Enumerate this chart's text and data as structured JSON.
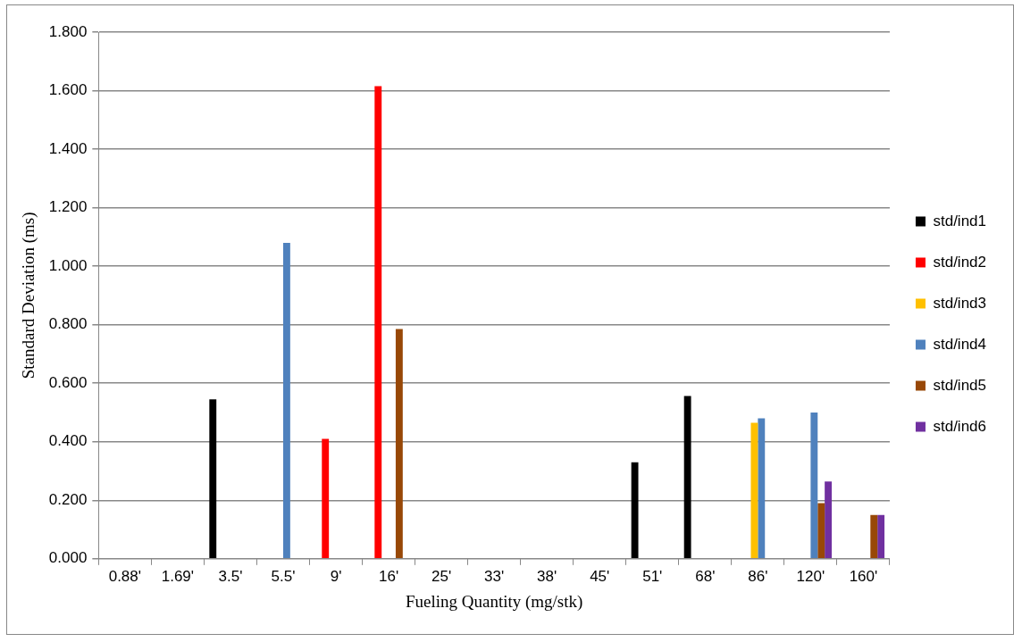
{
  "chart_data": {
    "type": "bar",
    "xlabel": "Fueling Quantity (mg/stk)",
    "ylabel": "Standard Deviation (ms)",
    "categories": [
      "0.88'",
      "1.69'",
      "3.5'",
      "5.5'",
      "9'",
      "16'",
      "25'",
      "33'",
      "38'",
      "45'",
      "51'",
      "68'",
      "86'",
      "120'",
      "160'"
    ],
    "series": [
      {
        "name": "std/ind1",
        "color": "#000000",
        "values": [
          null,
          null,
          0.545,
          null,
          null,
          null,
          null,
          null,
          null,
          null,
          0.33,
          0.556,
          null,
          null,
          null
        ]
      },
      {
        "name": "std/ind2",
        "color": "#ff0000",
        "values": [
          null,
          null,
          null,
          null,
          0.41,
          1.615,
          null,
          null,
          null,
          null,
          null,
          null,
          null,
          null,
          null
        ]
      },
      {
        "name": "std/ind3",
        "color": "#ffc000",
        "values": [
          null,
          null,
          null,
          null,
          null,
          null,
          null,
          null,
          null,
          null,
          null,
          null,
          0.465,
          null,
          null
        ]
      },
      {
        "name": "std/ind4",
        "color": "#4f81bd",
        "values": [
          null,
          null,
          null,
          1.08,
          null,
          null,
          null,
          null,
          null,
          null,
          null,
          null,
          0.48,
          0.5,
          null
        ]
      },
      {
        "name": "std/ind5",
        "color": "#984807",
        "values": [
          null,
          null,
          null,
          null,
          null,
          0.785,
          null,
          null,
          null,
          null,
          null,
          null,
          null,
          0.19,
          0.15
        ]
      },
      {
        "name": "std/ind6",
        "color": "#7030a0",
        "values": [
          null,
          null,
          null,
          null,
          null,
          null,
          null,
          null,
          null,
          null,
          null,
          null,
          null,
          0.264,
          0.15
        ]
      }
    ],
    "ylim": [
      0,
      1.8
    ],
    "yticks": [
      {
        "value": 0,
        "label": "0.000"
      },
      {
        "value": 0.2,
        "label": "0.200"
      },
      {
        "value": 0.4,
        "label": "0.400"
      },
      {
        "value": 0.6,
        "label": "0.600"
      },
      {
        "value": 0.8,
        "label": "0.800"
      },
      {
        "value": 1,
        "label": "1.000"
      },
      {
        "value": 1.2,
        "label": "1.200"
      },
      {
        "value": 1.4,
        "label": "1.400"
      },
      {
        "value": 1.6,
        "label": "1.600"
      },
      {
        "value": 1.8,
        "label": "1.800"
      }
    ],
    "grid": "y",
    "legend": "right"
  }
}
